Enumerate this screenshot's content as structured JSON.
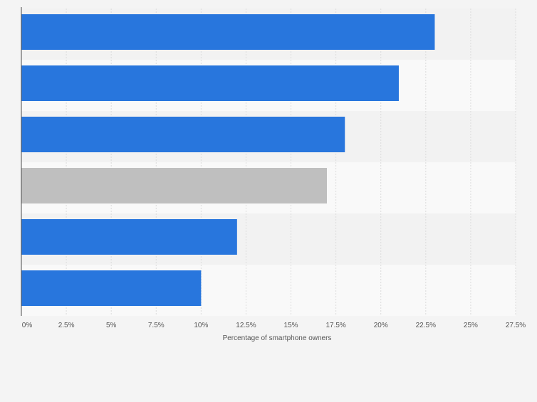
{
  "chart_data": {
    "type": "bar",
    "orientation": "horizontal",
    "categories": [
      "",
      "",
      "",
      "",
      "",
      ""
    ],
    "values": [
      23,
      21,
      18,
      17,
      12,
      10
    ],
    "bar_colors": [
      "#2876dd",
      "#2876dd",
      "#2876dd",
      "#bfbfbf",
      "#2876dd",
      "#2876dd"
    ],
    "title": "",
    "xlabel": "Percentage of smartphone owners",
    "ylabel": "",
    "xlim": [
      0,
      27.5
    ],
    "x_ticks": [
      0,
      2.5,
      5,
      7.5,
      10,
      12.5,
      15,
      17.5,
      20,
      22.5,
      25,
      27.5
    ],
    "x_tick_labels": [
      "0%",
      "2.5%",
      "5%",
      "7.5%",
      "10%",
      "12.5%",
      "15%",
      "17.5%",
      "20%",
      "22.5%",
      "25%",
      "27.5%"
    ],
    "grid": true,
    "legend": "none"
  },
  "colors": {
    "page_background": "#f4f4f4",
    "band_dark": "#f2f2f2",
    "band_light": "#f9f9f9",
    "gridline": "#dcdcdc",
    "axis_line": "#4a4a4a",
    "tick_text": "#555555"
  }
}
